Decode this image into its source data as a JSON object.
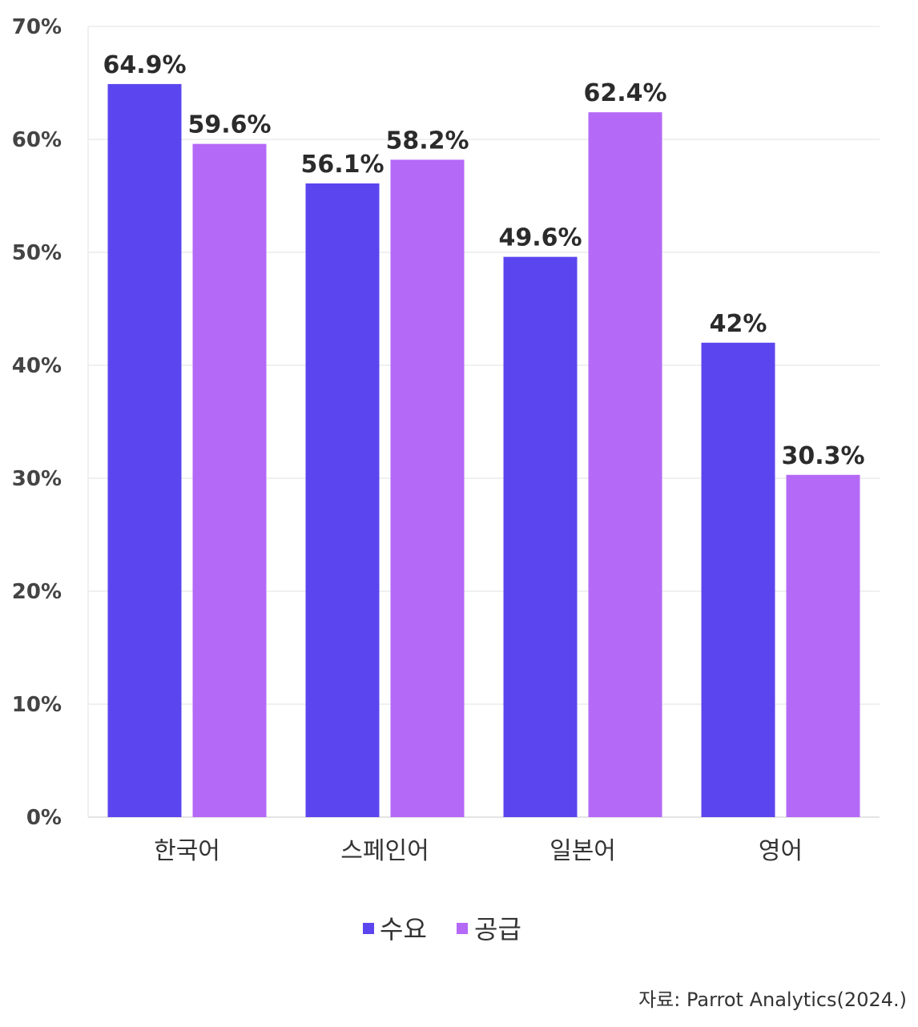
{
  "chart_data": {
    "type": "bar",
    "categories": [
      "한국어",
      "스페인어",
      "일본어",
      "영어"
    ],
    "series": [
      {
        "name": "수요",
        "values": [
          64.9,
          56.1,
          49.6,
          42
        ],
        "labels": [
          "64.9%",
          "56.1%",
          "49.6%",
          "42%"
        ],
        "color": "#5b45ee"
      },
      {
        "name": "공급",
        "values": [
          59.6,
          58.2,
          62.4,
          30.3
        ],
        "labels": [
          "59.6%",
          "58.2%",
          "62.4%",
          "30.3%"
        ],
        "color": "#b469f7"
      }
    ],
    "ylim": [
      0,
      70
    ],
    "yticks": [
      0,
      10,
      20,
      30,
      40,
      50,
      60,
      70
    ],
    "ytick_labels": [
      "0%",
      "10%",
      "20%",
      "30%",
      "40%",
      "50%",
      "60%",
      "70%"
    ],
    "grid": true,
    "legend_position": "bottom-center"
  },
  "source": "자료: Parrot Analytics(2024.)"
}
